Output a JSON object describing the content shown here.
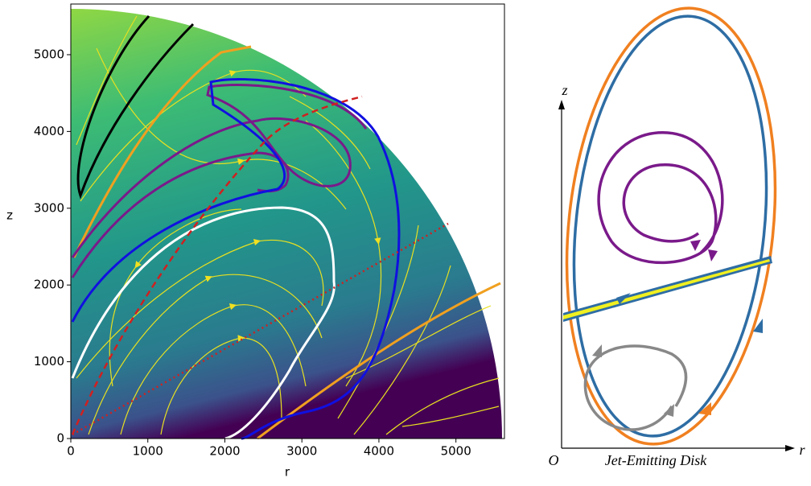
{
  "chart_data": {
    "type": "streamplot",
    "xlabel": "r",
    "ylabel": "z",
    "xlim": [
      0,
      5630
    ],
    "ylim": [
      0,
      5660
    ],
    "xticks": [
      0,
      1000,
      2000,
      3000,
      4000,
      5000
    ],
    "yticks": [
      0,
      1000,
      2000,
      3000,
      4000,
      5000
    ]
  },
  "diagram": {
    "z_axis": "z",
    "r_axis": "r",
    "origin": "O",
    "caption": "Jet-Emitting Disk"
  }
}
